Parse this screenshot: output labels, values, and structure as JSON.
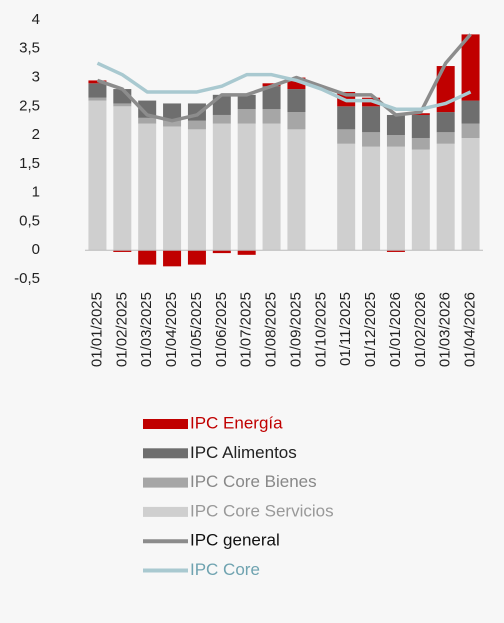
{
  "chart_data": {
    "type": "bar",
    "categories": [
      "01/01/2025",
      "01/02/2025",
      "01/03/2025",
      "01/04/2025",
      "01/05/2025",
      "01/06/2025",
      "01/07/2025",
      "01/08/2025",
      "01/09/2025",
      "01/10/2025",
      "01/11/2025",
      "01/12/2025",
      "01/01/2026",
      "01/02/2026",
      "01/03/2026",
      "01/04/2026"
    ],
    "series": [
      {
        "name": "IPC Energía",
        "color": "#c00000",
        "stack": true,
        "values": [
          0.05,
          -0.03,
          -0.25,
          -0.28,
          -0.25,
          -0.05,
          -0.08,
          0.05,
          0.2,
          null,
          0.25,
          0.15,
          -0.03,
          0.03,
          0.8,
          1.15
        ]
      },
      {
        "name": "IPC Alimentos",
        "color": "#6e6e6e",
        "stack": true,
        "values": [
          0.25,
          0.25,
          0.3,
          0.3,
          0.3,
          0.35,
          0.25,
          0.4,
          0.4,
          null,
          0.4,
          0.45,
          0.35,
          0.4,
          0.35,
          0.4
        ]
      },
      {
        "name": "IPC Core Bienes",
        "color": "#a6a6a6",
        "stack": true,
        "values": [
          0.05,
          0.05,
          0.1,
          0.1,
          0.15,
          0.15,
          0.25,
          0.25,
          0.3,
          null,
          0.25,
          0.25,
          0.2,
          0.2,
          0.2,
          0.25
        ]
      },
      {
        "name": "IPC Core Servicios",
        "color": "#cfcfcf",
        "stack": true,
        "values": [
          2.6,
          2.5,
          2.2,
          2.15,
          2.1,
          2.2,
          2.2,
          2.2,
          2.1,
          null,
          1.85,
          1.8,
          1.8,
          1.75,
          1.85,
          1.95
        ]
      },
      {
        "name": "IPC general",
        "color": "#8c8c8c",
        "type": "line",
        "values": [
          2.95,
          2.8,
          2.35,
          2.25,
          2.35,
          2.7,
          2.7,
          2.85,
          3.0,
          2.85,
          2.7,
          2.7,
          2.35,
          2.4,
          3.25,
          3.75
        ]
      },
      {
        "name": "IPC Core",
        "color": "#a9c9d0",
        "type": "line",
        "values": [
          3.25,
          3.05,
          2.75,
          2.75,
          2.75,
          2.85,
          3.05,
          3.05,
          2.95,
          2.8,
          2.6,
          2.6,
          2.45,
          2.45,
          2.55,
          2.75
        ]
      }
    ],
    "ylim": [
      -0.5,
      4
    ],
    "yticks": [
      {
        "value": -0.5,
        "label": "-0,5"
      },
      0,
      {
        "value": 0.5,
        "label": "0,5"
      },
      1,
      {
        "value": 1.5,
        "label": "1,5"
      },
      2,
      {
        "value": 2.5,
        "label": "2,5"
      },
      3,
      {
        "value": 3.5,
        "label": "3,5"
      },
      4
    ]
  }
}
